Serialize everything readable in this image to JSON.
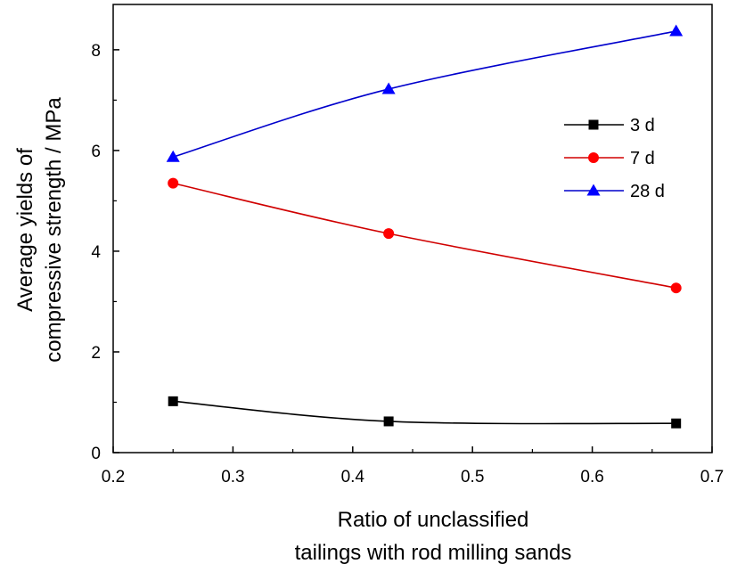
{
  "chart_data": {
    "type": "line",
    "title": "",
    "xlabel_lines": [
      "Ratio of unclassified",
      "tailings with rod milling sands"
    ],
    "ylabel_lines": [
      "Average yields of",
      "compressive strength / MPa"
    ],
    "xlim": [
      0.2,
      0.7
    ],
    "ylim": [
      0,
      8.9
    ],
    "xticks": [
      0.2,
      0.3,
      0.4,
      0.5,
      0.6,
      0.7
    ],
    "xtick_labels": [
      "0.2",
      "0.3",
      "0.4",
      "0.5",
      "0.6",
      "0.7"
    ],
    "yticks": [
      0,
      2,
      4,
      6,
      8
    ],
    "ytick_labels": [
      "0",
      "2",
      "4",
      "6",
      "8"
    ],
    "grid": false,
    "legend_position": "upper-right",
    "x": [
      0.25,
      0.43,
      0.67
    ],
    "series": [
      {
        "name": "3 d",
        "values": [
          1.02,
          0.62,
          0.58
        ],
        "color": "#000000",
        "marker": "square"
      },
      {
        "name": "7 d",
        "values": [
          5.35,
          4.35,
          3.27
        ],
        "color": "#ff0000",
        "line_color": "#d00000",
        "marker": "circle"
      },
      {
        "name": "28 d",
        "values": [
          5.87,
          7.22,
          8.37
        ],
        "color": "#0000ff",
        "line_color": "#0000cc",
        "marker": "triangle"
      }
    ]
  }
}
